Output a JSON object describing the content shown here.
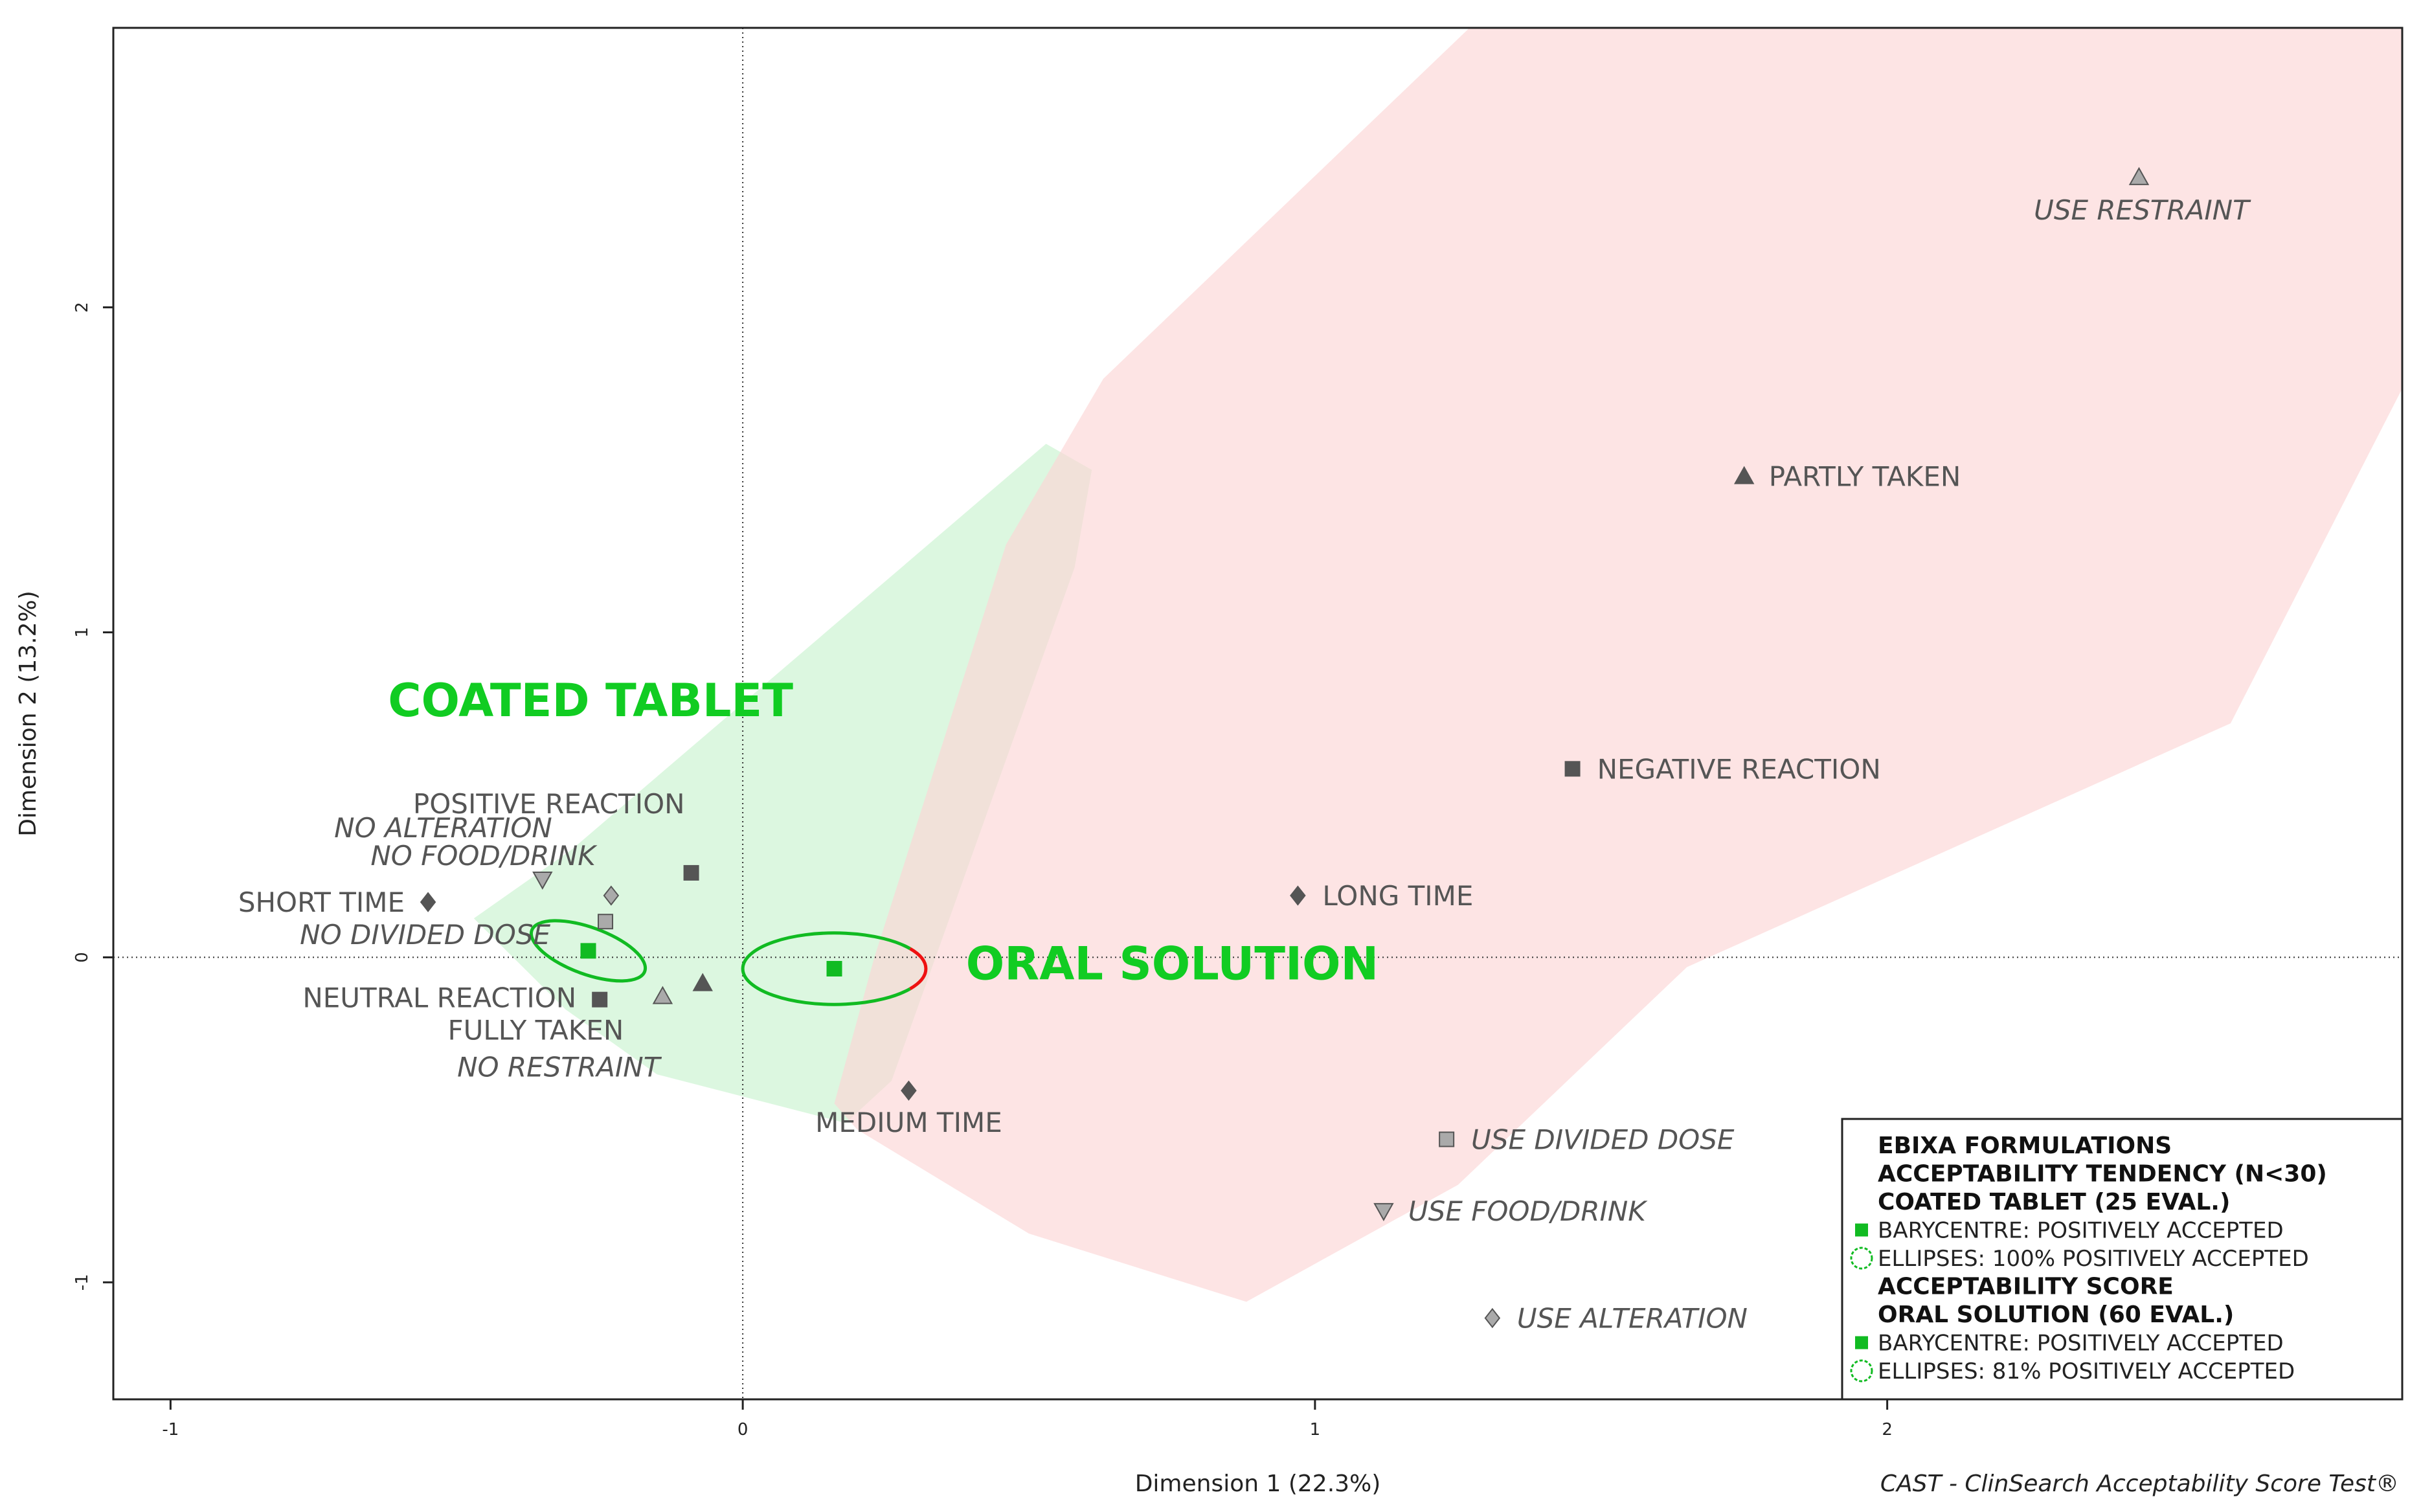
{
  "chart_data": {
    "type": "scatter",
    "xlabel": "Dimension 1 (22.3%)",
    "ylabel": "Dimension 2 (13.2%)",
    "xlim": [
      -1.1,
      2.9
    ],
    "ylim": [
      -1.36,
      2.86
    ],
    "x_ticks": [
      {
        "value": -1,
        "label": "-1"
      },
      {
        "value": 0,
        "label": "0"
      },
      {
        "value": 1,
        "label": "1"
      },
      {
        "value": 2,
        "label": "2"
      }
    ],
    "y_ticks": [
      {
        "value": -1,
        "label": "-1"
      },
      {
        "value": 0,
        "label": "0"
      },
      {
        "value": 1,
        "label": "1"
      },
      {
        "value": 2,
        "label": "2"
      }
    ],
    "reference_lines": {
      "x": 0,
      "y": 0,
      "style": "dotted"
    },
    "regions": [
      {
        "name": "coated-tablet-region",
        "color": "#c9f2cf",
        "points": [
          [
            -0.47,
            0.12
          ],
          [
            -0.3,
            0.33
          ],
          [
            0.53,
            1.58
          ],
          [
            0.61,
            1.5
          ],
          [
            0.58,
            1.2
          ],
          [
            0.26,
            -0.38
          ],
          [
            0.18,
            -0.51
          ],
          [
            -0.15,
            -0.36
          ],
          [
            -0.31,
            -0.16
          ],
          [
            -0.47,
            0.12
          ]
        ]
      },
      {
        "name": "oral-solution-region",
        "color": "#fcd5d5",
        "points": [
          [
            0.23,
            0.0
          ],
          [
            0.46,
            1.27
          ],
          [
            0.63,
            1.78
          ],
          [
            1.27,
            2.86
          ],
          [
            2.9,
            2.86
          ],
          [
            2.9,
            1.75
          ],
          [
            2.6,
            0.72
          ],
          [
            1.65,
            -0.03
          ],
          [
            1.25,
            -0.7
          ],
          [
            0.88,
            -1.06
          ],
          [
            0.5,
            -0.85
          ],
          [
            0.2,
            -0.53
          ],
          [
            0.16,
            -0.45
          ],
          [
            0.23,
            0.0
          ]
        ]
      }
    ],
    "ellipses": [
      {
        "name": "coated-tablet-ellipse",
        "cx": -0.27,
        "cy": 0.02,
        "rx": 0.105,
        "ry": 0.072,
        "rotation_deg": 20,
        "color": "#11bb22",
        "accepted_fraction": 1.0
      },
      {
        "name": "oral-solution-ellipse",
        "cx": 0.16,
        "cy": -0.035,
        "rx": 0.16,
        "ry": 0.11,
        "rotation_deg": 0,
        "color": "#11bb22",
        "rejected_part_color": "#ee1111",
        "accepted_fraction": 0.81
      }
    ],
    "barycentres": [
      {
        "name": "COATED TABLET",
        "x": -0.27,
        "y": 0.02,
        "color": "#11bb22"
      },
      {
        "name": "ORAL SOLUTION",
        "x": 0.16,
        "y": -0.035,
        "color": "#11bb22"
      }
    ],
    "formulation_labels": [
      {
        "text": "COATED TABLET",
        "x": -0.62,
        "y": 0.79
      },
      {
        "text": "ORAL SOLUTION",
        "x": 0.39,
        "y": -0.02
      }
    ],
    "points": [
      {
        "id": "positive-reaction",
        "x": -0.09,
        "y": 0.26,
        "marker": "square",
        "fill": "#555555",
        "label": "POSITIVE REACTION",
        "italic": false
      },
      {
        "id": "no-alteration",
        "x": -0.23,
        "y": 0.19,
        "marker": "diamond",
        "fill": "#aaaaaa",
        "label": "NO ALTERATION",
        "italic": true
      },
      {
        "id": "no-food-drink",
        "x": -0.35,
        "y": 0.24,
        "marker": "triangle-down",
        "fill": "#aaaaaa",
        "label": "NO FOOD/DRINK",
        "italic": true
      },
      {
        "id": "short-time",
        "x": -0.55,
        "y": 0.17,
        "marker": "diamond",
        "fill": "#555555",
        "label": "SHORT TIME",
        "italic": false
      },
      {
        "id": "no-divided-dose",
        "x": -0.24,
        "y": 0.11,
        "marker": "square",
        "fill": "#aaaaaa",
        "label": "NO DIVIDED DOSE",
        "italic": true
      },
      {
        "id": "neutral-reaction",
        "x": -0.25,
        "y": -0.13,
        "marker": "square",
        "fill": "#555555",
        "label": "NEUTRAL REACTION",
        "italic": false
      },
      {
        "id": "fully-taken",
        "x": -0.07,
        "y": -0.08,
        "marker": "triangle-up",
        "fill": "#555555",
        "label": "FULLY TAKEN",
        "italic": false
      },
      {
        "id": "no-restraint",
        "x": -0.14,
        "y": -0.12,
        "marker": "triangle-up",
        "fill": "#aaaaaa",
        "label": "NO RESTRAINT",
        "italic": true
      },
      {
        "id": "medium-time",
        "x": 0.29,
        "y": -0.41,
        "marker": "diamond",
        "fill": "#555555",
        "label": "MEDIUM TIME",
        "italic": false
      },
      {
        "id": "long-time",
        "x": 0.97,
        "y": 0.19,
        "marker": "diamond",
        "fill": "#555555",
        "label": "LONG TIME",
        "italic": false
      },
      {
        "id": "negative-reaction",
        "x": 1.45,
        "y": 0.58,
        "marker": "square",
        "fill": "#555555",
        "label": "NEGATIVE REACTION",
        "italic": false
      },
      {
        "id": "partly-taken",
        "x": 1.75,
        "y": 1.48,
        "marker": "triangle-up",
        "fill": "#555555",
        "label": "PARTLY TAKEN",
        "italic": false
      },
      {
        "id": "use-restraint",
        "x": 2.44,
        "y": 2.4,
        "marker": "triangle-up",
        "fill": "#aaaaaa",
        "label": "USE RESTRAINT",
        "italic": true
      },
      {
        "id": "use-divided-dose",
        "x": 1.23,
        "y": -0.56,
        "marker": "square",
        "fill": "#aaaaaa",
        "label": "USE DIVIDED DOSE",
        "italic": true
      },
      {
        "id": "use-food-drink",
        "x": 1.12,
        "y": -0.78,
        "marker": "triangle-down",
        "fill": "#aaaaaa",
        "label": "USE FOOD/DRINK",
        "italic": true
      },
      {
        "id": "use-alteration",
        "x": 1.31,
        "y": -1.11,
        "marker": "diamond",
        "fill": "#aaaaaa",
        "label": "USE ALTERATION",
        "italic": true
      }
    ],
    "legend": {
      "placement": "bottom-right",
      "entries": [
        {
          "text": "EBIXA FORMULATIONS",
          "style": "bold",
          "symbol": null
        },
        {
          "text": "ACCEPTABILITY TENDENCY (N<30)",
          "style": "bold",
          "symbol": null
        },
        {
          "text": "COATED TABLET (25 EVAL.)",
          "style": "bold",
          "symbol": null
        },
        {
          "text": "BARYCENTRE: POSITIVELY ACCEPTED",
          "style": "normal",
          "symbol": "square"
        },
        {
          "text": "ELLIPSES: 100% POSITIVELY ACCEPTED",
          "style": "normal",
          "symbol": "circle"
        },
        {
          "text": "ACCEPTABILITY SCORE",
          "style": "bold",
          "symbol": null
        },
        {
          "text": "ORAL SOLUTION (60 EVAL.)",
          "style": "bold",
          "symbol": null
        },
        {
          "text": "BARYCENTRE: POSITIVELY ACCEPTED",
          "style": "normal",
          "symbol": "square"
        },
        {
          "text": "ELLIPSES: 81% POSITIVELY ACCEPTED",
          "style": "normal",
          "symbol": "circle"
        }
      ],
      "symbol_color": "#11bb22"
    },
    "credit": "CAST - ClinSearch Acceptability Score Test®"
  }
}
